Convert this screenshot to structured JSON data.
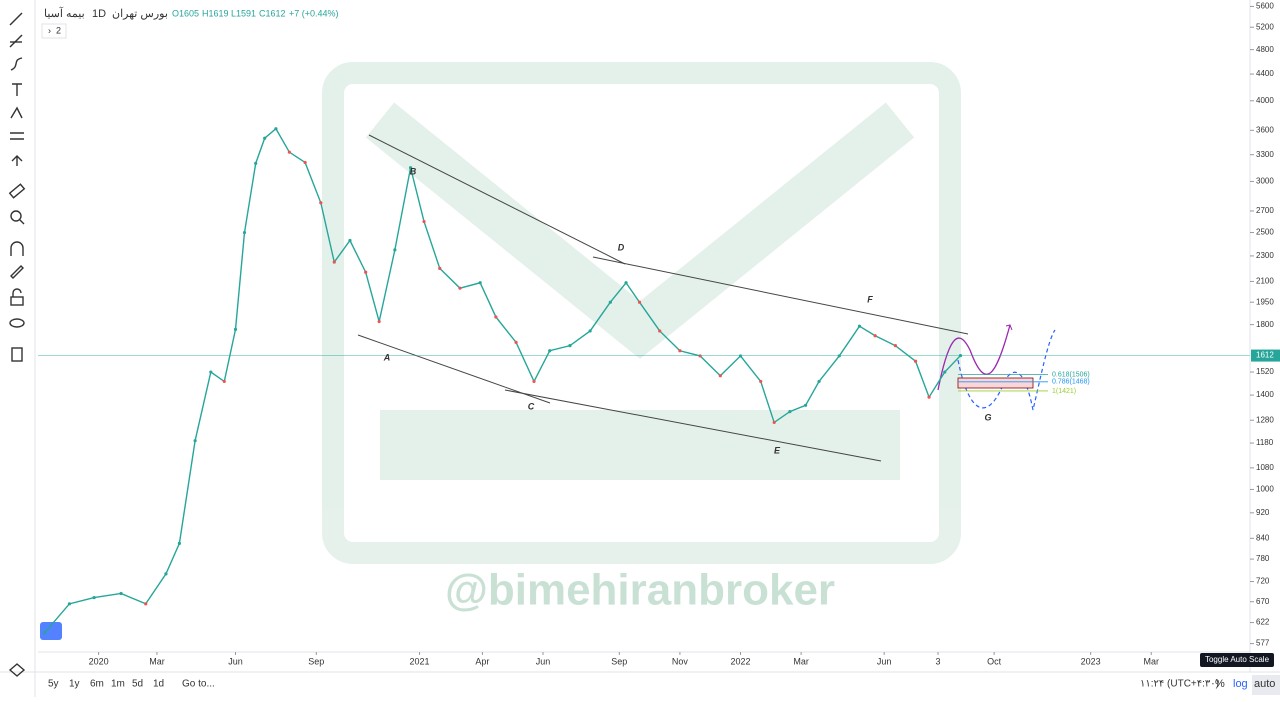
{
  "header": {
    "symbol": "بیمه آسیا",
    "interval": "1D",
    "exchange": "بورس تهران",
    "open": "O1605",
    "high": "H1619",
    "low": "L1591",
    "close": "C1612",
    "change": "+7 (+0.44%)",
    "indicators": "2"
  },
  "chart_data": {
    "type": "line",
    "color": "#26a69a",
    "log_scale": true,
    "x": [
      3,
      14,
      25,
      37,
      48,
      57,
      63,
      70,
      77,
      83,
      88,
      92,
      97,
      101,
      106,
      112,
      119,
      126,
      132,
      139,
      146,
      152,
      159,
      166,
      172,
      179,
      188,
      197,
      204,
      213,
      221,
      228,
      237,
      246,
      255,
      262,
      268,
      277,
      286,
      295,
      304,
      313,
      322,
      328,
      335,
      342,
      348,
      357,
      366,
      373,
      382,
      391,
      397,
      404,
      411
    ],
    "values": [
      600,
      665,
      680,
      690,
      665,
      740,
      825,
      1190,
      1520,
      1470,
      1770,
      2500,
      3200,
      3500,
      3620,
      3330,
      3210,
      2780,
      2250,
      2430,
      2170,
      1820,
      2350,
      3150,
      2600,
      2200,
      2050,
      2090,
      1850,
      1690,
      1470,
      1640,
      1670,
      1760,
      1950,
      2090,
      1950,
      1760,
      1640,
      1610,
      1500,
      1610,
      1470,
      1270,
      1320,
      1350,
      1470,
      1610,
      1790,
      1730,
      1670,
      1580,
      1390,
      1520,
      1612
    ],
    "xlim": [
      0,
      540
    ],
    "xticks": [
      {
        "value": 27,
        "label": "2020"
      },
      {
        "value": 53,
        "label": "Mar"
      },
      {
        "value": 88,
        "label": "Jun"
      },
      {
        "value": 124,
        "label": "Sep"
      },
      {
        "value": 170,
        "label": "2021"
      },
      {
        "value": 198,
        "label": "Apr"
      },
      {
        "value": 225,
        "label": "Jun"
      },
      {
        "value": 259,
        "label": "Sep"
      },
      {
        "value": 286,
        "label": "Nov"
      },
      {
        "value": 313,
        "label": "2022"
      },
      {
        "value": 340,
        "label": "Mar"
      },
      {
        "value": 377,
        "label": "Jun"
      },
      {
        "value": 401,
        "label": "3"
      },
      {
        "value": 426,
        "label": "Oct"
      },
      {
        "value": 469,
        "label": "2023"
      },
      {
        "value": 496,
        "label": "Mar"
      }
    ],
    "ylim": [
      560,
      5730
    ],
    "yticks": [
      5600,
      5200,
      4800,
      4400,
      4000,
      3600,
      3300,
      3000,
      2700,
      2500,
      2300,
      2100,
      1950,
      1800,
      1520,
      1400,
      1280,
      1180,
      1080,
      1000,
      920,
      840,
      780,
      720,
      670,
      622,
      577
    ],
    "last_price": 1612,
    "fib_levels": [
      {
        "value": 1506,
        "label": "0.618(1506)",
        "color": "#26a69a"
      },
      {
        "value": 1468,
        "label": "0.786(1468)",
        "color": "#2196f3"
      },
      {
        "value": 1421,
        "label": "1(1421)",
        "color": "#9acd32"
      }
    ],
    "wave_labels": [
      "A",
      "B",
      "C",
      "D",
      "E",
      "F",
      "G"
    ],
    "watermark": "@bimehiranbroker"
  },
  "bottom_bar": {
    "ranges": [
      "5y",
      "1y",
      "6m",
      "1m",
      "5d",
      "1d"
    ],
    "goto": "Go to...",
    "clock": "۱۱:۲۴ (UTC+۴:۳۰)",
    "percent": "%",
    "log": "log",
    "auto": "auto",
    "tooltip": "Toggle Auto Scale"
  }
}
